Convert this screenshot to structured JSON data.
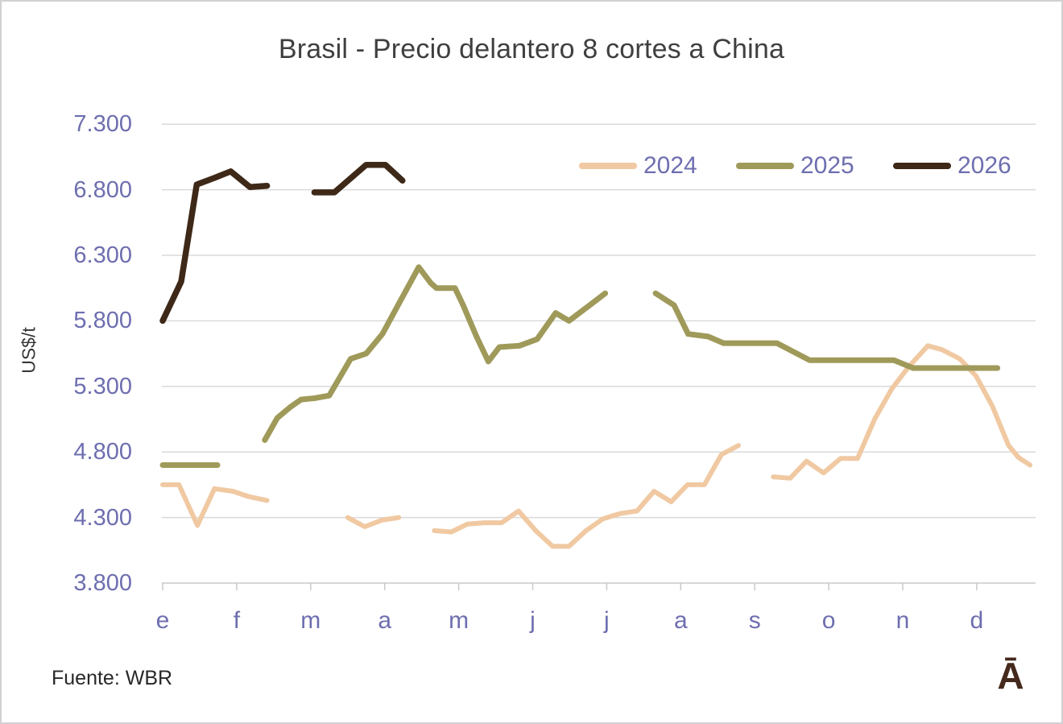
{
  "title": "Brasil - Precio delantero 8 cortes a China",
  "source": "Fuente: WBR",
  "logo": "Ā",
  "y_axis": {
    "label": "US$/t"
  },
  "chart_data": {
    "type": "line",
    "title": "Brasil - Precio delantero 8 cortes a China",
    "ylabel": "US$/t",
    "x_categories": [
      "e",
      "f",
      "m",
      "a",
      "m",
      "j",
      "j",
      "a",
      "s",
      "o",
      "n",
      "d"
    ],
    "y_axis_min": 3800,
    "y_axis_max": 7300,
    "y_axis_step": 500,
    "y_tick_labels": [
      "3.800",
      "4.300",
      "4.800",
      "5.300",
      "5.800",
      "6.300",
      "6.800",
      "7.300"
    ],
    "grid_color": "#dadada",
    "axis_color": "#c9c9c9",
    "legend_position": "top-right",
    "units": "US$/t",
    "x_note": "x = month index, 0 = enero (e) … 11 = diciembre (d); gaps are missing weeks",
    "series": [
      {
        "name": "2024",
        "color": "#f0c9a2",
        "stroke_width": 6,
        "segments": [
          [
            [
              0.0,
              4550
            ],
            [
              0.22,
              4550
            ],
            [
              0.47,
              4240
            ],
            [
              0.7,
              4520
            ],
            [
              0.95,
              4500
            ],
            [
              1.16,
              4460
            ],
            [
              1.41,
              4430
            ]
          ],
          [
            [
              2.5,
              4300
            ],
            [
              2.73,
              4230
            ],
            [
              2.96,
              4280
            ],
            [
              3.19,
              4300
            ]
          ],
          [
            [
              3.67,
              4200
            ],
            [
              3.9,
              4190
            ],
            [
              4.12,
              4250
            ],
            [
              4.35,
              4260
            ],
            [
              4.58,
              4260
            ],
            [
              4.81,
              4350
            ],
            [
              5.04,
              4200
            ],
            [
              5.27,
              4080
            ],
            [
              5.49,
              4080
            ],
            [
              5.72,
              4200
            ],
            [
              5.95,
              4290
            ],
            [
              6.18,
              4330
            ],
            [
              6.41,
              4350
            ],
            [
              6.64,
              4500
            ],
            [
              6.87,
              4420
            ],
            [
              7.09,
              4550
            ],
            [
              7.32,
              4550
            ],
            [
              7.55,
              4780
            ],
            [
              7.78,
              4850
            ]
          ],
          [
            [
              8.25,
              4610
            ],
            [
              8.48,
              4600
            ],
            [
              8.7,
              4730
            ],
            [
              8.93,
              4640
            ],
            [
              9.16,
              4750
            ],
            [
              9.39,
              4750
            ],
            [
              9.62,
              5050
            ],
            [
              9.85,
              5280
            ],
            [
              10.08,
              5450
            ],
            [
              10.34,
              5610
            ],
            [
              10.53,
              5580
            ],
            [
              10.77,
              5510
            ],
            [
              10.99,
              5380
            ],
            [
              11.21,
              5150
            ],
            [
              11.43,
              4850
            ],
            [
              11.56,
              4760
            ],
            [
              11.72,
              4700
            ]
          ]
        ]
      },
      {
        "name": "2025",
        "color": "#9f9a5a",
        "stroke_width": 7,
        "segments": [
          [
            [
              0.0,
              4700
            ],
            [
              0.74,
              4700
            ]
          ],
          [
            [
              1.38,
              4890
            ],
            [
              1.55,
              5060
            ],
            [
              1.72,
              5140
            ],
            [
              1.87,
              5200
            ],
            [
              2.05,
              5210
            ],
            [
              2.25,
              5230
            ],
            [
              2.54,
              5510
            ],
            [
              2.75,
              5550
            ],
            [
              2.97,
              5700
            ],
            [
              3.19,
              5930
            ],
            [
              3.46,
              6210
            ],
            [
              3.62,
              6090
            ],
            [
              3.7,
              6050
            ],
            [
              3.95,
              6050
            ],
            [
              4.06,
              5920
            ],
            [
              4.24,
              5680
            ],
            [
              4.4,
              5490
            ],
            [
              4.55,
              5600
            ],
            [
              4.82,
              5610
            ],
            [
              5.06,
              5660
            ],
            [
              5.31,
              5860
            ],
            [
              5.49,
              5800
            ],
            [
              5.77,
              5920
            ],
            [
              5.98,
              6010
            ]
          ],
          [
            [
              6.66,
              6010
            ],
            [
              6.91,
              5920
            ],
            [
              7.1,
              5700
            ],
            [
              7.37,
              5680
            ],
            [
              7.58,
              5630
            ],
            [
              8.3,
              5630
            ],
            [
              8.74,
              5500
            ],
            [
              9.88,
              5500
            ],
            [
              10.14,
              5440
            ],
            [
              11.28,
              5440
            ]
          ]
        ]
      },
      {
        "name": "2026",
        "color": "#3e2817",
        "stroke_width": 7.5,
        "segments": [
          [
            [
              0.0,
              5800
            ],
            [
              0.25,
              6100
            ],
            [
              0.46,
              6840
            ],
            [
              0.7,
              6890
            ],
            [
              0.92,
              6940
            ],
            [
              1.18,
              6820
            ],
            [
              1.41,
              6830
            ]
          ],
          [
            [
              2.05,
              6780
            ],
            [
              2.32,
              6780
            ],
            [
              2.75,
              6990
            ],
            [
              3.01,
              6990
            ],
            [
              3.24,
              6870
            ]
          ]
        ]
      }
    ]
  }
}
